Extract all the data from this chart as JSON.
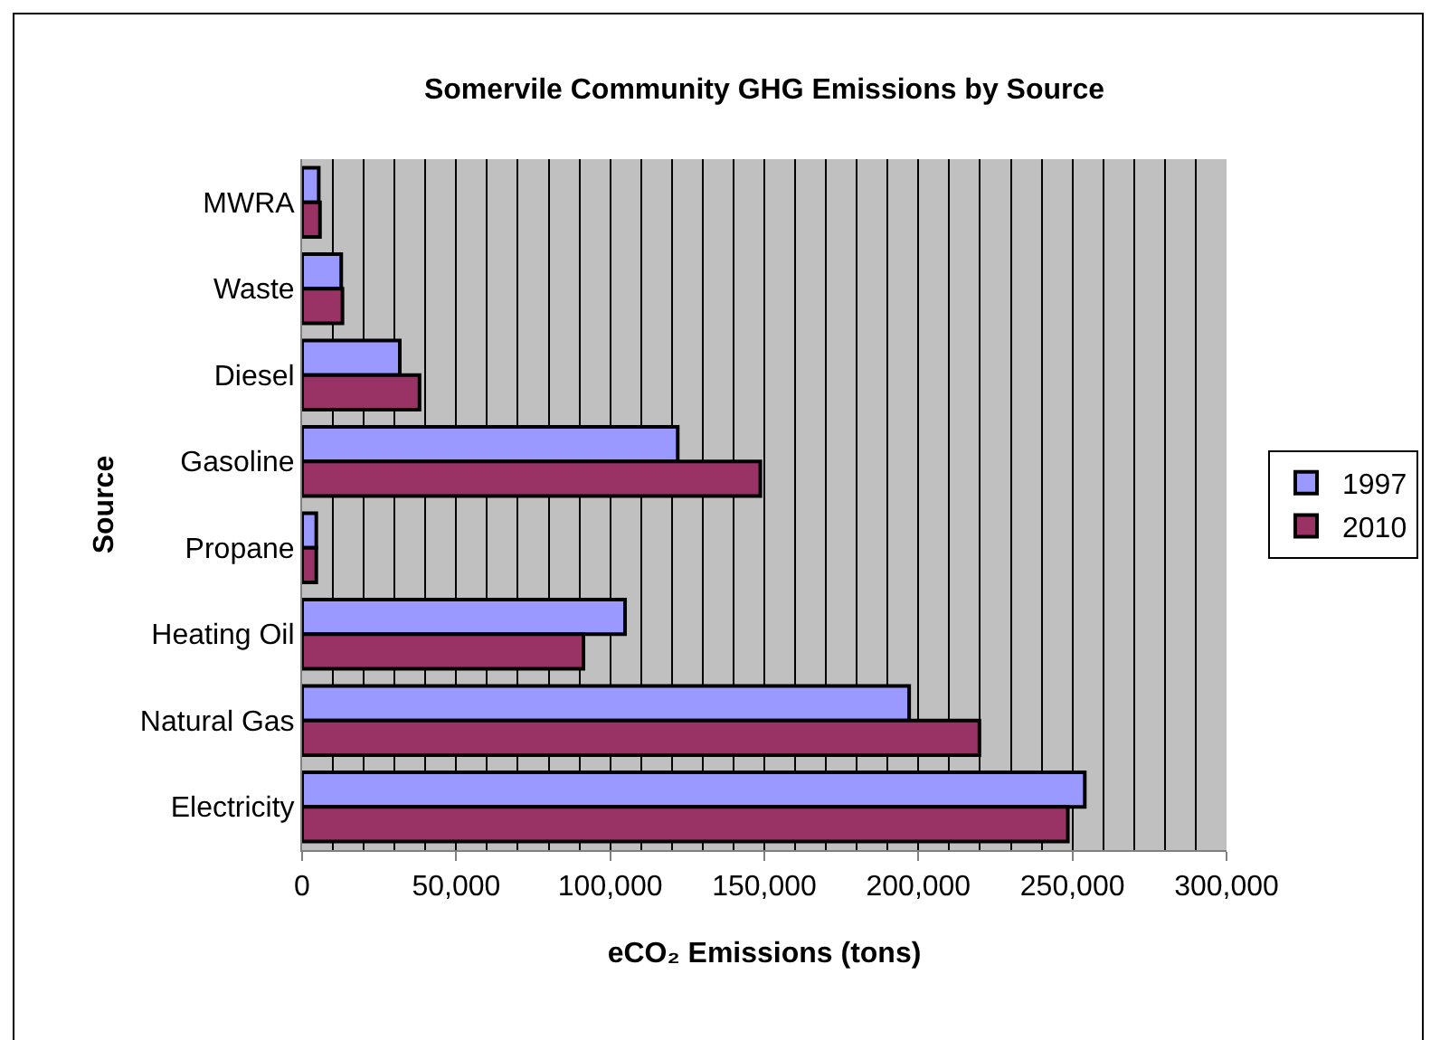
{
  "chart_data": {
    "type": "bar",
    "orientation": "horizontal",
    "title": "Somervile Community GHG Emissions by Source",
    "xlabel": "eCO₂ Emissions (tons)",
    "ylabel": "Source",
    "categories": [
      "MWRA",
      "Waste",
      "Diesel",
      "Gasoline",
      "Propane",
      "Heating Oil",
      "Natural Gas",
      "Electricity"
    ],
    "series": [
      {
        "name": "1997",
        "color": "#9999ff",
        "values": [
          5400,
          12700,
          31700,
          121900,
          4600,
          104800,
          197000,
          254000
        ]
      },
      {
        "name": "2010",
        "color": "#993366",
        "values": [
          5800,
          13100,
          38100,
          148700,
          4600,
          91300,
          219800,
          248500
        ]
      }
    ],
    "xlim": [
      0,
      300000
    ],
    "xticks": [
      {
        "value": 0,
        "label": "0"
      },
      {
        "value": 50000,
        "label": "50,000"
      },
      {
        "value": 100000,
        "label": "100,000"
      },
      {
        "value": 150000,
        "label": "150,000"
      },
      {
        "value": 200000,
        "label": "200,000"
      },
      {
        "value": 250000,
        "label": "250,000"
      },
      {
        "value": 300000,
        "label": "300,000"
      }
    ],
    "grid": "x",
    "legend": "right"
  }
}
